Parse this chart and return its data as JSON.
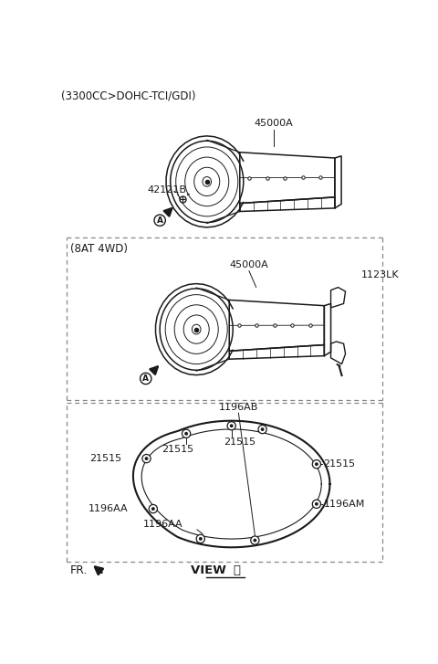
{
  "bg_color": "#ffffff",
  "line_color": "#1a1a1a",
  "dash_color": "#888888",
  "title": "(3300CC>DOHC-TCI/GDI)",
  "section2_label": "(8AT 4WD)",
  "view_label": "VIEW ",
  "fr_label": "FR.",
  "p45000A_top": "45000A",
  "p42121B": "42121B",
  "p45000A_mid": "45000A",
  "p1123LK": "1123LK",
  "p1196AB": "1196AB",
  "p1196AA_1": "1196AA",
  "p1196AA_2": "1196AA",
  "p1196AM": "1196AM",
  "p21515_1": "21515",
  "p21515_2": "21515",
  "p21515_3": "21515",
  "p21515_4": "21515",
  "circled_A": "Ⓐ"
}
